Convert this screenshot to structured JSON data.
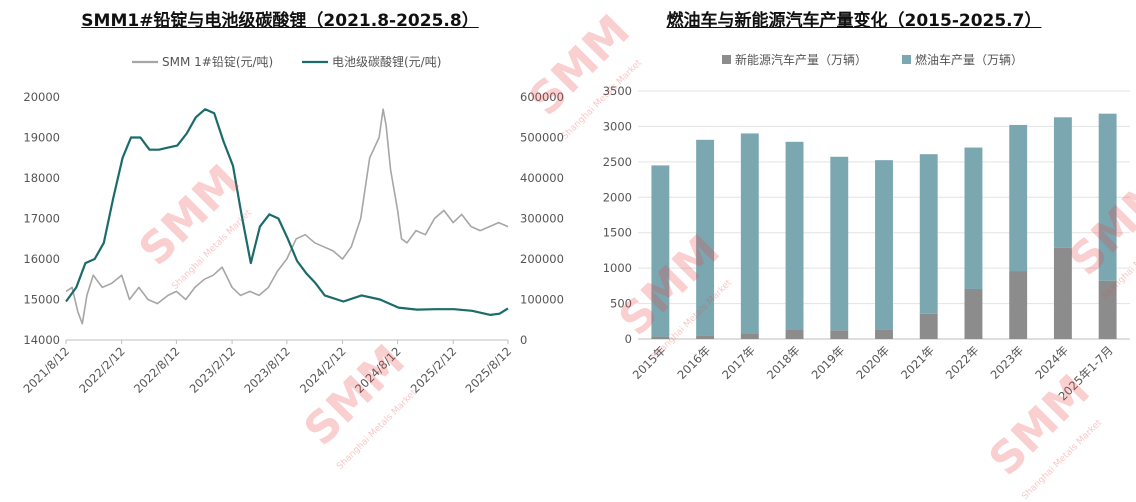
{
  "watermark": {
    "brand": "SMM",
    "sub": "Shanghai Metals Market"
  },
  "chart_data": [
    {
      "type": "line",
      "title": "SMM1#铅锭与电池级碳酸锂（2021.8-2025.8）",
      "series": [
        {
          "name": "SMM 1#铅锭(元/吨)",
          "axis": "left",
          "color": "#a6a6a6",
          "points": [
            [
              "2021-08-12",
              15200
            ],
            [
              "2021-09-01",
              15300
            ],
            [
              "2021-09-20",
              14700
            ],
            [
              "2021-10-05",
              14400
            ],
            [
              "2021-10-20",
              15100
            ],
            [
              "2021-11-10",
              15600
            ],
            [
              "2021-12-10",
              15300
            ],
            [
              "2022-01-10",
              15400
            ],
            [
              "2022-02-12",
              15600
            ],
            [
              "2022-03-10",
              15000
            ],
            [
              "2022-04-10",
              15300
            ],
            [
              "2022-05-10",
              15000
            ],
            [
              "2022-06-10",
              14900
            ],
            [
              "2022-07-15",
              15100
            ],
            [
              "2022-08-12",
              15200
            ],
            [
              "2022-09-12",
              15000
            ],
            [
              "2022-10-12",
              15300
            ],
            [
              "2022-11-12",
              15500
            ],
            [
              "2022-12-12",
              15600
            ],
            [
              "2023-01-10",
              15800
            ],
            [
              "2023-02-12",
              15300
            ],
            [
              "2023-03-12",
              15100
            ],
            [
              "2023-04-12",
              15200
            ],
            [
              "2023-05-12",
              15100
            ],
            [
              "2023-06-12",
              15300
            ],
            [
              "2023-07-12",
              15700
            ],
            [
              "2023-08-12",
              16000
            ],
            [
              "2023-09-12",
              16500
            ],
            [
              "2023-10-12",
              16600
            ],
            [
              "2023-11-12",
              16400
            ],
            [
              "2023-12-12",
              16300
            ],
            [
              "2024-01-12",
              16200
            ],
            [
              "2024-02-12",
              16000
            ],
            [
              "2024-03-12",
              16300
            ],
            [
              "2024-04-12",
              17000
            ],
            [
              "2024-05-12",
              18500
            ],
            [
              "2024-06-12",
              19000
            ],
            [
              "2024-06-25",
              19700
            ],
            [
              "2024-07-05",
              19300
            ],
            [
              "2024-07-20",
              18200
            ],
            [
              "2024-08-12",
              17200
            ],
            [
              "2024-08-25",
              16500
            ],
            [
              "2024-09-12",
              16400
            ],
            [
              "2024-10-12",
              16700
            ],
            [
              "2024-11-12",
              16600
            ],
            [
              "2024-12-12",
              17000
            ],
            [
              "2025-01-12",
              17200
            ],
            [
              "2025-02-12",
              16900
            ],
            [
              "2025-03-12",
              17100
            ],
            [
              "2025-04-12",
              16800
            ],
            [
              "2025-05-12",
              16700
            ],
            [
              "2025-06-12",
              16800
            ],
            [
              "2025-07-12",
              16900
            ],
            [
              "2025-08-12",
              16800
            ]
          ]
        },
        {
          "name": "电池级碳酸锂(元/吨)",
          "axis": "right",
          "color": "#1b6b6b",
          "points": [
            [
              "2021-08-12",
              95000
            ],
            [
              "2021-09-15",
              130000
            ],
            [
              "2021-10-15",
              190000
            ],
            [
              "2021-11-15",
              200000
            ],
            [
              "2021-12-15",
              240000
            ],
            [
              "2022-01-15",
              350000
            ],
            [
              "2022-02-15",
              450000
            ],
            [
              "2022-03-15",
              500000
            ],
            [
              "2022-04-15",
              500000
            ],
            [
              "2022-05-15",
              470000
            ],
            [
              "2022-06-15",
              470000
            ],
            [
              "2022-07-15",
              475000
            ],
            [
              "2022-08-15",
              480000
            ],
            [
              "2022-09-15",
              510000
            ],
            [
              "2022-10-15",
              550000
            ],
            [
              "2022-11-15",
              570000
            ],
            [
              "2022-12-15",
              560000
            ],
            [
              "2023-01-15",
              490000
            ],
            [
              "2023-02-15",
              430000
            ],
            [
              "2023-03-15",
              310000
            ],
            [
              "2023-04-15",
              190000
            ],
            [
              "2023-05-15",
              280000
            ],
            [
              "2023-06-15",
              310000
            ],
            [
              "2023-07-15",
              300000
            ],
            [
              "2023-08-15",
              250000
            ],
            [
              "2023-09-15",
              195000
            ],
            [
              "2023-10-15",
              165000
            ],
            [
              "2023-11-15",
              140000
            ],
            [
              "2023-12-15",
              110000
            ],
            [
              "2024-02-15",
              95000
            ],
            [
              "2024-04-15",
              110000
            ],
            [
              "2024-06-15",
              100000
            ],
            [
              "2024-08-15",
              80000
            ],
            [
              "2024-10-15",
              75000
            ],
            [
              "2024-12-15",
              76000
            ],
            [
              "2025-02-15",
              76000
            ],
            [
              "2025-04-15",
              72000
            ],
            [
              "2025-06-15",
              62000
            ],
            [
              "2025-07-15",
              65000
            ],
            [
              "2025-08-12",
              78000
            ]
          ]
        }
      ],
      "left_ylim": [
        14000,
        20000
      ],
      "left_yticks": [
        14000,
        15000,
        16000,
        17000,
        18000,
        19000,
        20000
      ],
      "right_ylim": [
        0,
        600000
      ],
      "right_yticks": [
        0,
        100000,
        200000,
        300000,
        400000,
        500000,
        600000
      ],
      "xticks": [
        [
          "2021-08-12",
          "2021/8/12"
        ],
        [
          "2022-02-12",
          "2022/2/12"
        ],
        [
          "2022-08-12",
          "2022/8/12"
        ],
        [
          "2023-02-12",
          "2023/2/12"
        ],
        [
          "2023-08-12",
          "2023/8/12"
        ],
        [
          "2024-02-12",
          "2024/2/12"
        ],
        [
          "2024-08-12",
          "2024/8/12"
        ],
        [
          "2025-02-12",
          "2025/2/12"
        ],
        [
          "2025-08-12",
          "2025/8/12"
        ]
      ],
      "grid": false,
      "legend": "top"
    },
    {
      "type": "bar",
      "title": "燃油车与新能源汽车产量变化（2015-2025.7）",
      "categories": [
        "2015年",
        "2016年",
        "2017年",
        "2018年",
        "2019年",
        "2020年",
        "2021年",
        "2022年",
        "2023年",
        "2024年",
        "2025年1-7月"
      ],
      "stacked": true,
      "series": [
        {
          "name": "新能源汽车产量（万辆）",
          "color": "#8c8c8c",
          "values": [
            34,
            52,
            79,
            127,
            124,
            137,
            355,
            706,
            959,
            1289,
            823
          ]
        },
        {
          "name": "燃油车产量（万辆）",
          "color": "#7ba7b1",
          "values": [
            2416,
            2759,
            2822,
            2656,
            2448,
            2387,
            2253,
            1996,
            2062,
            1840,
            2357
          ]
        }
      ],
      "ylim": [
        0,
        3500
      ],
      "yticks": [
        0,
        500,
        1000,
        1500,
        2000,
        2500,
        3000,
        3500
      ],
      "grid": true,
      "legend": "top"
    }
  ]
}
